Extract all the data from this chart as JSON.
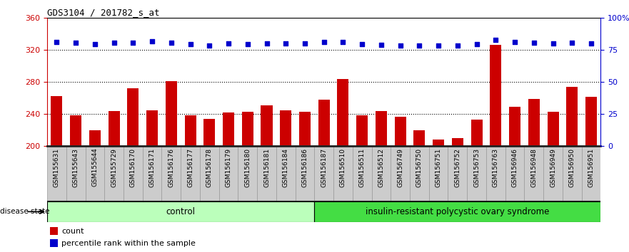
{
  "title": "GDS3104 / 201782_s_at",
  "samples": [
    "GSM155631",
    "GSM155643",
    "GSM155644",
    "GSM155729",
    "GSM156170",
    "GSM156171",
    "GSM156176",
    "GSM156177",
    "GSM156178",
    "GSM156179",
    "GSM156180",
    "GSM156181",
    "GSM156184",
    "GSM156186",
    "GSM156187",
    "GSM156510",
    "GSM156511",
    "GSM156512",
    "GSM156749",
    "GSM156750",
    "GSM156751",
    "GSM156752",
    "GSM156753",
    "GSM156763",
    "GSM156946",
    "GSM156948",
    "GSM156949",
    "GSM156950",
    "GSM156951"
  ],
  "counts": [
    262,
    238,
    220,
    244,
    272,
    245,
    281,
    238,
    234,
    242,
    243,
    251,
    245,
    243,
    258,
    284,
    238,
    244,
    237,
    220,
    208,
    210,
    233,
    326,
    249,
    259,
    243,
    274,
    261
  ],
  "percentile_ranks": [
    330,
    329,
    327,
    329,
    329,
    331,
    329,
    327,
    325,
    328,
    327,
    328,
    328,
    328,
    330,
    330,
    327,
    326,
    325,
    325,
    325,
    325,
    327,
    332,
    330,
    329,
    328,
    329,
    328
  ],
  "control_count": 14,
  "disease_count": 15,
  "bar_color": "#cc0000",
  "dot_color": "#0000cc",
  "ylim_left": [
    200,
    360
  ],
  "ylim_right": [
    0,
    100
  ],
  "yticks_left": [
    200,
    240,
    280,
    320,
    360
  ],
  "yticks_right": [
    0,
    25,
    50,
    75,
    100
  ],
  "ytick_labels_right": [
    "0",
    "25",
    "50",
    "75",
    "100%"
  ],
  "hlines": [
    240,
    280,
    320
  ],
  "control_label": "control",
  "disease_label": "insulin-resistant polycystic ovary syndrome",
  "control_color": "#bbffbb",
  "disease_color": "#44dd44",
  "disease_state_label": "disease state",
  "legend_count_label": "count",
  "legend_percentile_label": "percentile rank within the sample",
  "xtick_bg_color": "#cccccc",
  "xtick_border_color": "#999999",
  "bottom_border_color": "#222222"
}
